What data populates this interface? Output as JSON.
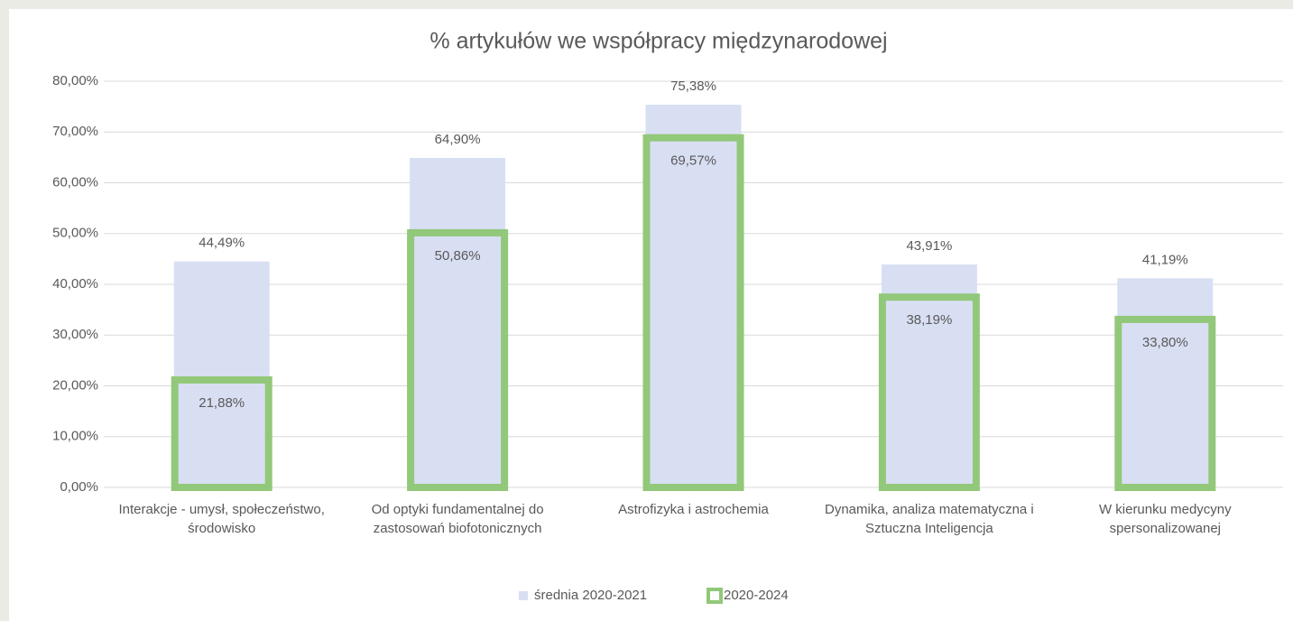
{
  "chart_data": {
    "type": "bar",
    "title": "% artykułów we współpracy międzynarodowej",
    "categories": [
      "Interakcje - umysł, społeczeństwo, środowisko",
      "Od optyki fundamentalnej do zastosowań biofotonicznych",
      "Astrofizyka i astrochemia",
      "Dynamika, analiza matematyczna i Sztuczna Inteligencja",
      "W kierunku medycyny spersonalizowanej"
    ],
    "series": [
      {
        "name": "średnia 2020-2021",
        "color": "#d9dff3",
        "values": [
          44.49,
          64.9,
          75.38,
          43.91,
          41.19
        ],
        "value_labels": [
          "44,49%",
          "64,90%",
          "75,38%",
          "43,91%",
          "41,19%"
        ]
      },
      {
        "name": "2020-2024",
        "color": "#92c87a",
        "outline": true,
        "values": [
          21.88,
          50.86,
          69.57,
          38.19,
          33.8
        ],
        "value_labels": [
          "21,88%",
          "50,86%",
          "69,57%",
          "38,19%",
          "33,80%"
        ]
      }
    ],
    "ylim": [
      0,
      80
    ],
    "yticks": [
      {
        "value": 0,
        "label": "0,00%"
      },
      {
        "value": 10,
        "label": "10,00%"
      },
      {
        "value": 20,
        "label": "20,00%"
      },
      {
        "value": 30,
        "label": "30,00%"
      },
      {
        "value": 40,
        "label": "40,00%"
      },
      {
        "value": 50,
        "label": "50,00%"
      },
      {
        "value": 60,
        "label": "60,00%"
      },
      {
        "value": 70,
        "label": "70,00%"
      },
      {
        "value": 80,
        "label": "80,00%"
      }
    ],
    "grid": true,
    "legend": "bottom"
  }
}
